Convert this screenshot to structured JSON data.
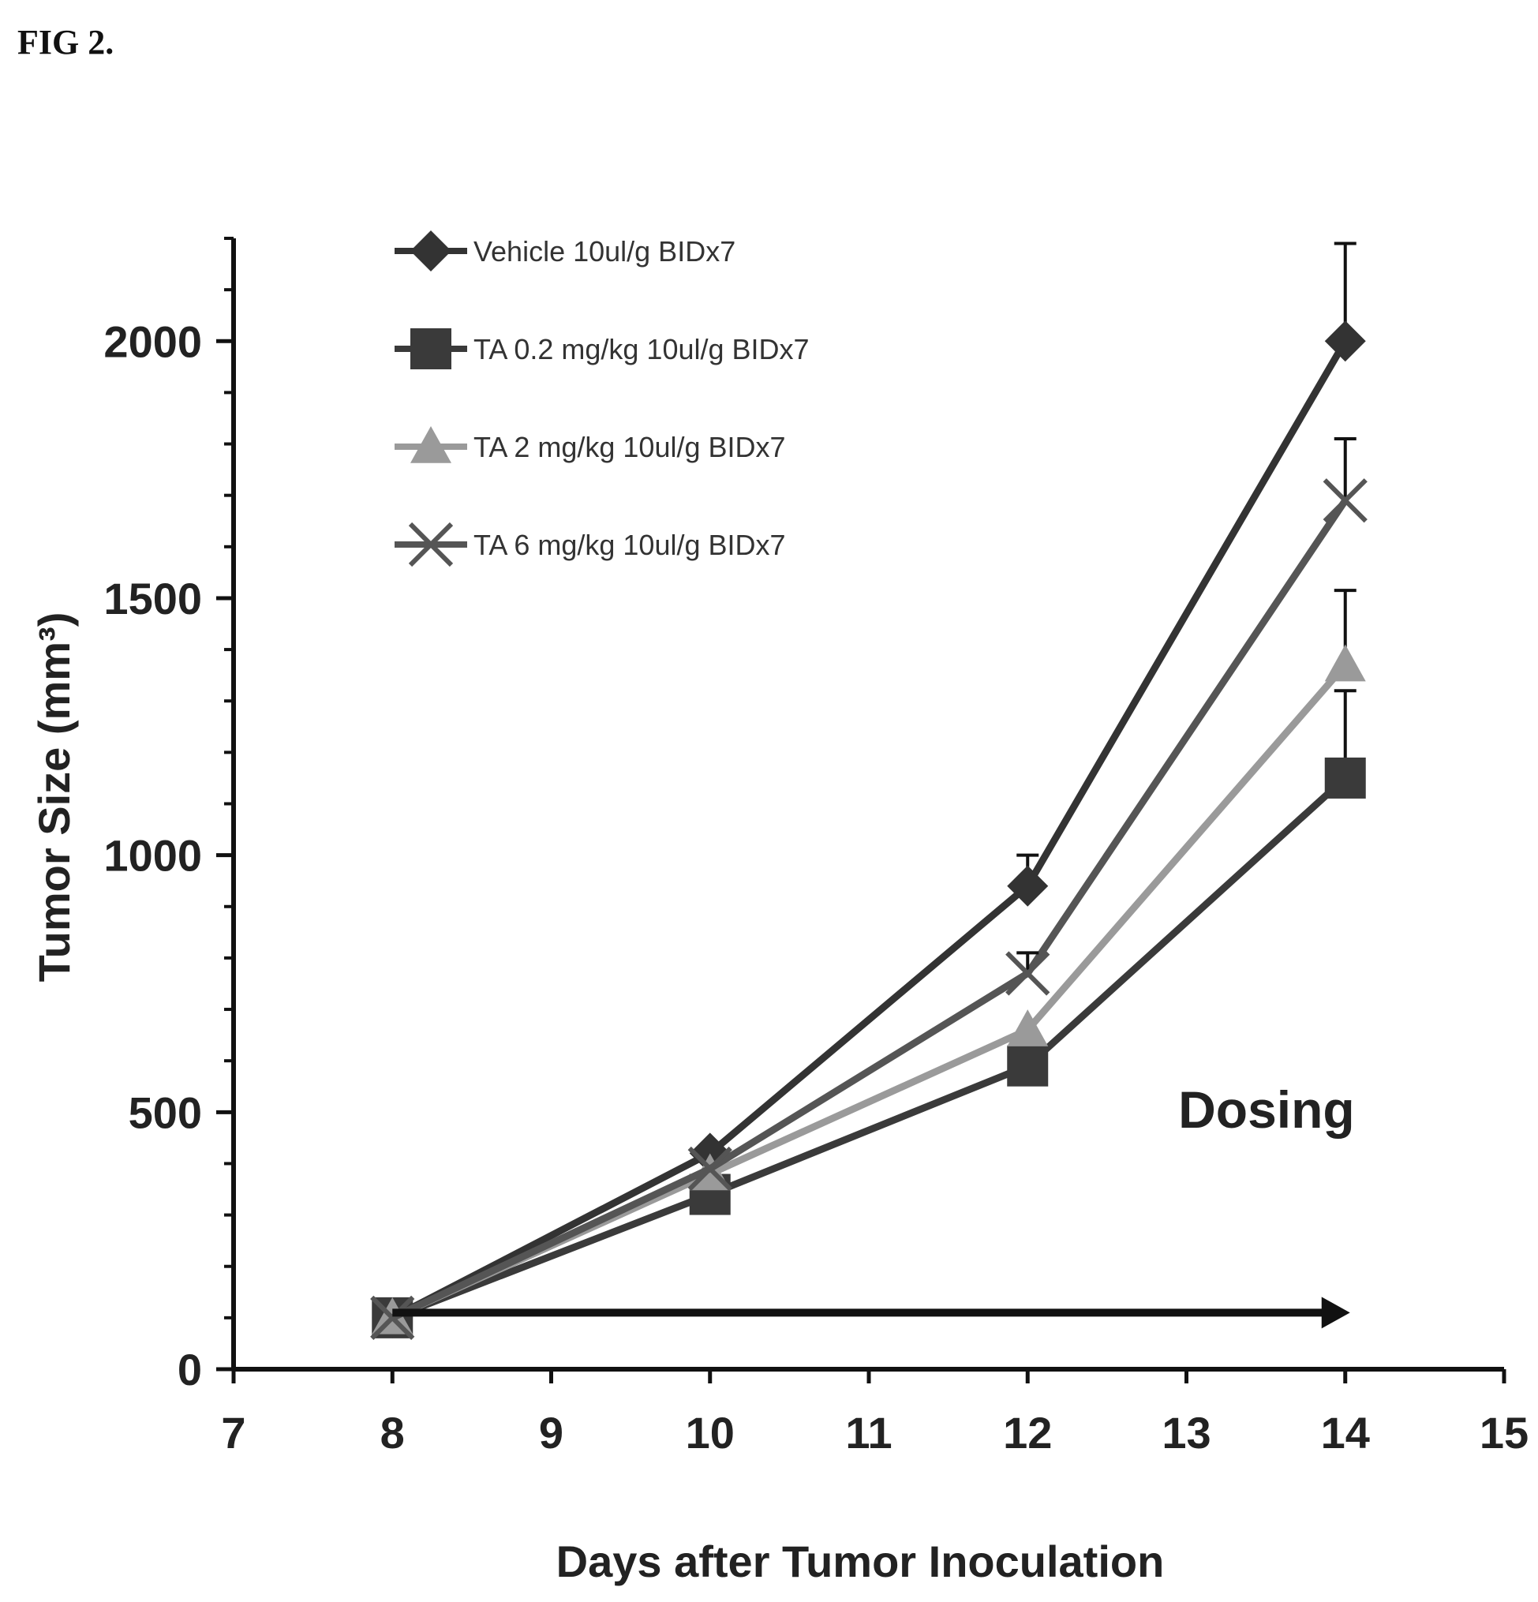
{
  "figure_label": "FIG 2.",
  "chart_data": {
    "type": "line",
    "title": "",
    "xlabel": "Days after Tumor Inoculation",
    "ylabel": "Tumor Size (mm³)",
    "xlim": [
      7,
      15
    ],
    "ylim": [
      0,
      2200
    ],
    "x_ticks": [
      7,
      8,
      9,
      10,
      11,
      12,
      13,
      14,
      15
    ],
    "y_ticks": [
      0,
      500,
      1000,
      1500,
      2000
    ],
    "grid": false,
    "legend_position": "top-left",
    "x": [
      8,
      10,
      12,
      14
    ],
    "series": [
      {
        "name": "Vehicle 10ul/g BIDx7",
        "color": "#333333",
        "marker": "diamond",
        "values": [
          100,
          420,
          940,
          2000
        ],
        "error": [
          0,
          0,
          60,
          190
        ]
      },
      {
        "name": "TA 0.2 mg/kg 10ul/g BIDx7",
        "color": "#3a3a3a",
        "marker": "square",
        "values": [
          100,
          340,
          590,
          1150
        ],
        "error": [
          0,
          0,
          0,
          170
        ]
      },
      {
        "name": "TA 2 mg/kg 10ul/g BIDx7",
        "color": "#9a9a9a",
        "marker": "triangle",
        "values": [
          100,
          380,
          660,
          1370
        ],
        "error": [
          0,
          0,
          0,
          145
        ]
      },
      {
        "name": "TA 6 mg/kg 10ul/g BIDx7",
        "color": "#555555",
        "marker": "x",
        "values": [
          100,
          390,
          770,
          1690
        ],
        "error": [
          0,
          0,
          40,
          120
        ]
      }
    ],
    "annotations": [
      {
        "text": "Dosing",
        "x_start": 8,
        "x_end": 14,
        "y": 110
      }
    ]
  }
}
